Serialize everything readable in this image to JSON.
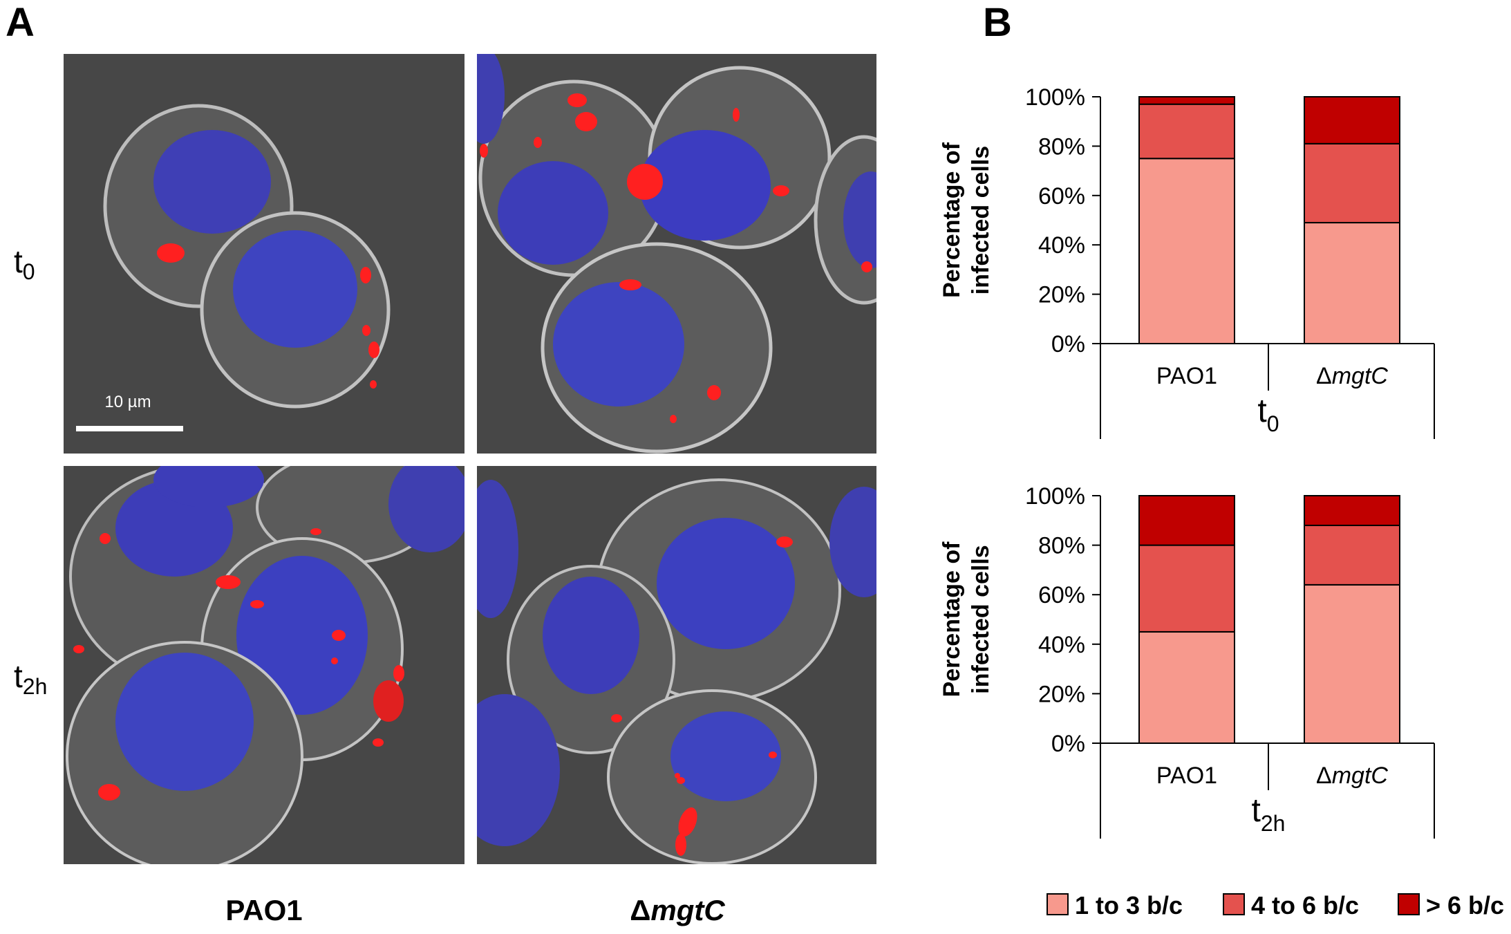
{
  "panels": {
    "a_label": "A",
    "b_label": "B"
  },
  "micrographs": {
    "scale_bar_label": "10 µm",
    "row_labels": [
      {
        "main": "t",
        "sub": "0"
      },
      {
        "main": "t",
        "sub": "2h"
      }
    ],
    "col_labels": [
      {
        "prefix": "",
        "italic": "",
        "plain": "PAO1"
      },
      {
        "prefix": "Δ",
        "italic": "mgtC",
        "plain": ""
      }
    ]
  },
  "colors": {
    "low": "#f7998d",
    "mid": "#e4524e",
    "high": "#c00000",
    "micro_bg": "#4a4a4a"
  },
  "chart_data": [
    {
      "type": "bar",
      "stacked": true,
      "ylabel": [
        "Percentage of",
        "infected cells"
      ],
      "xlabel": {
        "main": "t",
        "sub": "0"
      },
      "categories": [
        {
          "prefix": "",
          "italic": "",
          "plain": "PAO1"
        },
        {
          "prefix": "Δ",
          "italic": "mgtC",
          "plain": ""
        }
      ],
      "ylim": [
        0,
        100
      ],
      "yticks": [
        "0%",
        "20%",
        "40%",
        "60%",
        "80%",
        "100%"
      ],
      "series": [
        {
          "name": "1 to 3 b/c",
          "values": [
            75,
            49
          ]
        },
        {
          "name": "4 to 6 b/c",
          "values": [
            22,
            32
          ]
        },
        {
          "name": "> 6 b/c",
          "values": [
            3,
            19
          ]
        }
      ]
    },
    {
      "type": "bar",
      "stacked": true,
      "ylabel": [
        "Percentage of",
        "infected cells"
      ],
      "xlabel": {
        "main": "t",
        "sub": "2h"
      },
      "categories": [
        {
          "prefix": "",
          "italic": "",
          "plain": "PAO1"
        },
        {
          "prefix": "Δ",
          "italic": "mgtC",
          "plain": ""
        }
      ],
      "ylim": [
        0,
        100
      ],
      "yticks": [
        "0%",
        "20%",
        "40%",
        "60%",
        "80%",
        "100%"
      ],
      "series": [
        {
          "name": "1 to 3 b/c",
          "values": [
            45,
            64
          ]
        },
        {
          "name": "4 to 6 b/c",
          "values": [
            35,
            24
          ]
        },
        {
          "name": "> 6 b/c",
          "values": [
            20,
            12
          ]
        }
      ]
    }
  ],
  "legend": {
    "placement": "bottom",
    "entries": [
      "1 to 3 b/c",
      "4 to 6 b/c",
      "> 6 b/c"
    ]
  }
}
